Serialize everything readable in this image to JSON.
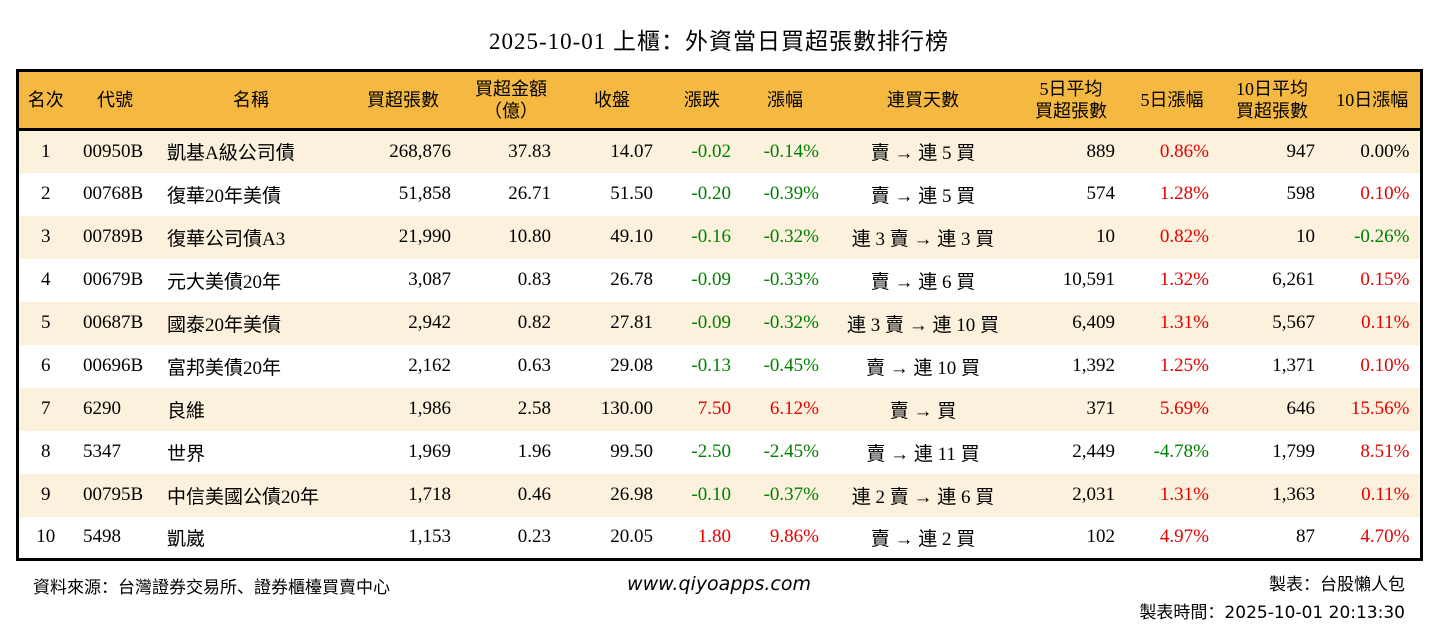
{
  "title": "2025-10-01 上櫃：外資當日買超張數排行榜",
  "colors": {
    "header_bg": "#F5B942",
    "row_alt_bg": "#FBF1DC",
    "up_red": "#E60000",
    "down_green": "#008000",
    "flat_black": "#000000",
    "border": "#000000"
  },
  "table": {
    "columns": [
      {
        "key": "rank",
        "label": "名次",
        "align": "center",
        "width": 56,
        "trend": false
      },
      {
        "key": "code",
        "label": "代號",
        "align": "left",
        "width": 84,
        "trend": false
      },
      {
        "key": "name",
        "label": "名稱",
        "align": "left",
        "width": 188,
        "trend": false
      },
      {
        "key": "shares",
        "label": "買超張數",
        "align": "right",
        "width": 116,
        "trend": false
      },
      {
        "key": "amount",
        "label": "買超金額\n（億）",
        "align": "right",
        "width": 100,
        "trend": false
      },
      {
        "key": "close",
        "label": "收盤",
        "align": "right",
        "width": 102,
        "trend": false
      },
      {
        "key": "change",
        "label": "漲跌",
        "align": "right",
        "width": 78,
        "trend": true
      },
      {
        "key": "change_pct",
        "label": "漲幅",
        "align": "right",
        "width": 88,
        "trend": true
      },
      {
        "key": "streak",
        "label": "連買天數",
        "align": "center",
        "width": 188,
        "trend": false
      },
      {
        "key": "avg5",
        "label": "5日平均\n買超張數",
        "align": "right",
        "width": 108,
        "trend": false
      },
      {
        "key": "pct5",
        "label": "5日漲幅",
        "align": "right",
        "width": 94,
        "trend": true
      },
      {
        "key": "avg10",
        "label": "10日平均\n買超張數",
        "align": "right",
        "width": 106,
        "trend": false
      },
      {
        "key": "pct10",
        "label": "10日漲幅",
        "align": "right",
        "width": 96,
        "trend": true
      }
    ],
    "rows": [
      {
        "rank": "1",
        "code": "00950B",
        "name": "凱基A級公司債",
        "shares": "268,876",
        "amount": "37.83",
        "close": "14.07",
        "change": "-0.02",
        "change_pct": "-0.14%",
        "streak": "賣 → 連 5 買",
        "avg5": "889",
        "pct5": "0.86%",
        "avg10": "947",
        "pct10": "0.00%"
      },
      {
        "rank": "2",
        "code": "00768B",
        "name": "復華20年美債",
        "shares": "51,858",
        "amount": "26.71",
        "close": "51.50",
        "change": "-0.20",
        "change_pct": "-0.39%",
        "streak": "賣 → 連 5 買",
        "avg5": "574",
        "pct5": "1.28%",
        "avg10": "598",
        "pct10": "0.10%"
      },
      {
        "rank": "3",
        "code": "00789B",
        "name": "復華公司債A3",
        "shares": "21,990",
        "amount": "10.80",
        "close": "49.10",
        "change": "-0.16",
        "change_pct": "-0.32%",
        "streak": "連 3 賣 → 連 3 買",
        "avg5": "10",
        "pct5": "0.82%",
        "avg10": "10",
        "pct10": "-0.26%"
      },
      {
        "rank": "4",
        "code": "00679B",
        "name": "元大美債20年",
        "shares": "3,087",
        "amount": "0.83",
        "close": "26.78",
        "change": "-0.09",
        "change_pct": "-0.33%",
        "streak": "賣 → 連 6 買",
        "avg5": "10,591",
        "pct5": "1.32%",
        "avg10": "6,261",
        "pct10": "0.15%"
      },
      {
        "rank": "5",
        "code": "00687B",
        "name": "國泰20年美債",
        "shares": "2,942",
        "amount": "0.82",
        "close": "27.81",
        "change": "-0.09",
        "change_pct": "-0.32%",
        "streak": "連 3 賣 → 連 10 買",
        "avg5": "6,409",
        "pct5": "1.31%",
        "avg10": "5,567",
        "pct10": "0.11%"
      },
      {
        "rank": "6",
        "code": "00696B",
        "name": "富邦美債20年",
        "shares": "2,162",
        "amount": "0.63",
        "close": "29.08",
        "change": "-0.13",
        "change_pct": "-0.45%",
        "streak": "賣 → 連 10 買",
        "avg5": "1,392",
        "pct5": "1.25%",
        "avg10": "1,371",
        "pct10": "0.10%"
      },
      {
        "rank": "7",
        "code": "6290",
        "name": "良維",
        "shares": "1,986",
        "amount": "2.58",
        "close": "130.00",
        "change": "7.50",
        "change_pct": "6.12%",
        "streak": "賣 → 買",
        "avg5": "371",
        "pct5": "5.69%",
        "avg10": "646",
        "pct10": "15.56%"
      },
      {
        "rank": "8",
        "code": "5347",
        "name": "世界",
        "shares": "1,969",
        "amount": "1.96",
        "close": "99.50",
        "change": "-2.50",
        "change_pct": "-2.45%",
        "streak": "賣 → 連 11 買",
        "avg5": "2,449",
        "pct5": "-4.78%",
        "avg10": "1,799",
        "pct10": "8.51%"
      },
      {
        "rank": "9",
        "code": "00795B",
        "name": "中信美國公債20年",
        "shares": "1,718",
        "amount": "0.46",
        "close": "26.98",
        "change": "-0.10",
        "change_pct": "-0.37%",
        "streak": "連 2 賣 → 連 6 買",
        "avg5": "2,031",
        "pct5": "1.31%",
        "avg10": "1,363",
        "pct10": "0.11%"
      },
      {
        "rank": "10",
        "code": "5498",
        "name": "凱崴",
        "shares": "1,153",
        "amount": "0.23",
        "close": "20.05",
        "change": "1.80",
        "change_pct": "9.86%",
        "streak": "賣 → 連 2 買",
        "avg5": "102",
        "pct5": "4.97%",
        "avg10": "87",
        "pct10": "4.70%"
      }
    ]
  },
  "footer": {
    "source": "資料來源：台灣證券交易所、證券櫃檯買賣中心",
    "website": "www.qiyoapps.com",
    "maker": "製表：台股懶人包",
    "made_time": "製表時間：2025-10-01 20:13:30"
  }
}
